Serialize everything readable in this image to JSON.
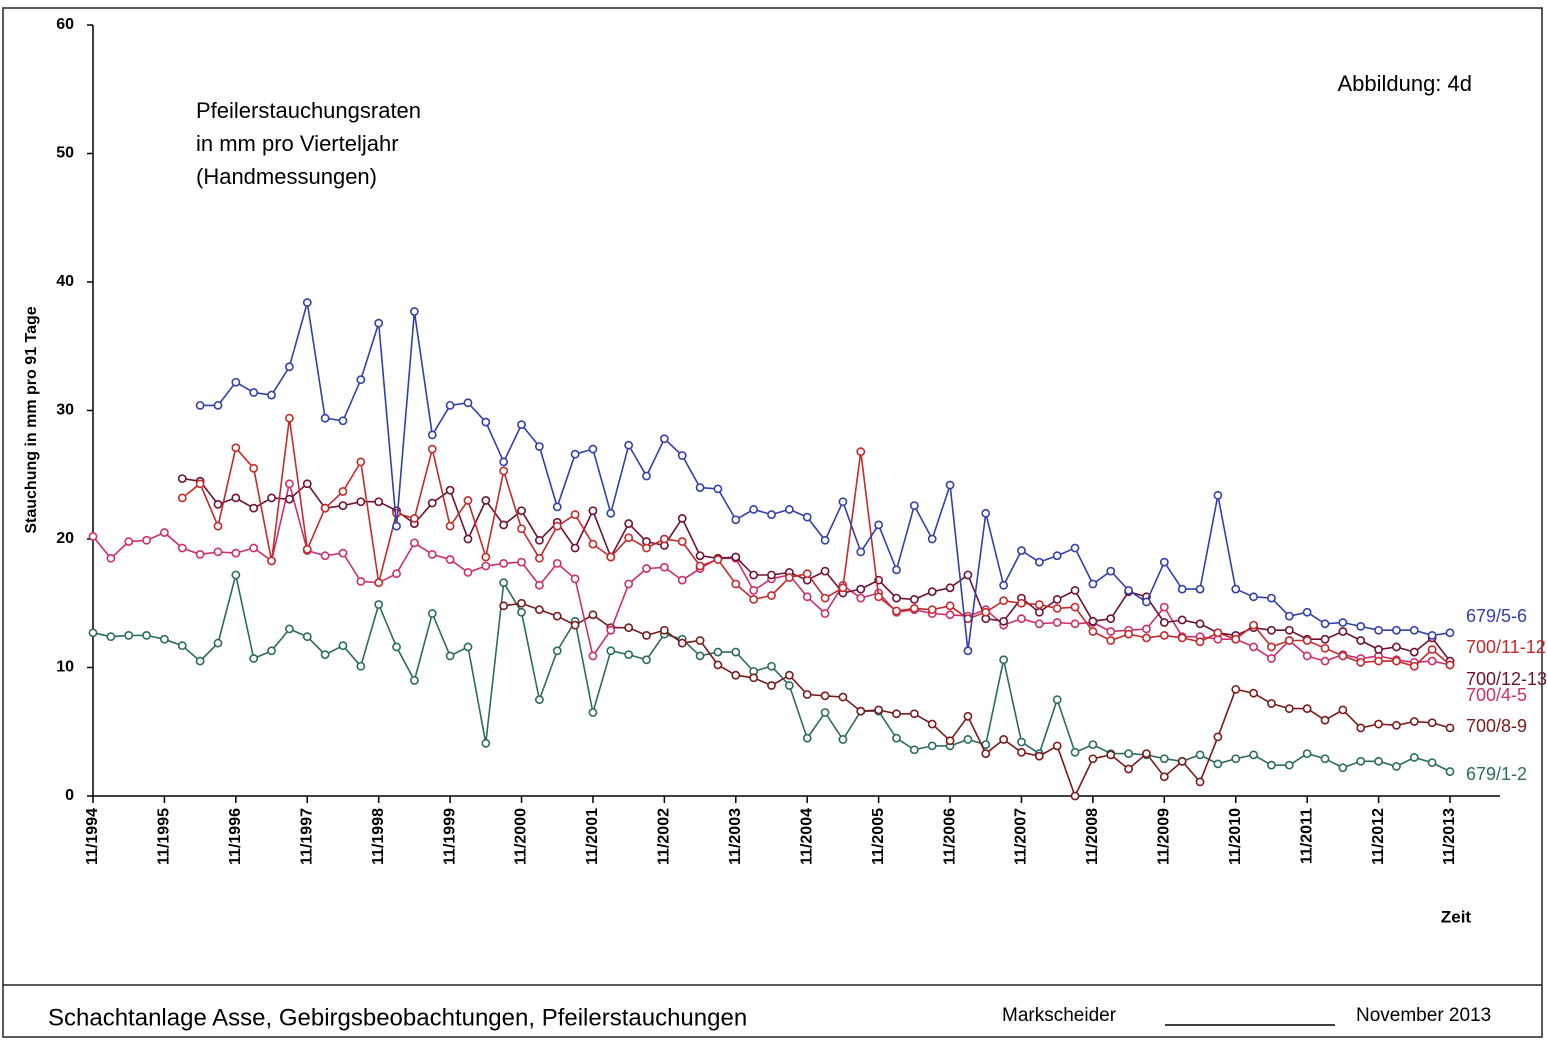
{
  "chart_data": {
    "type": "line",
    "title": [
      "Pfeilerstauchungsraten",
      "in mm pro Vierteljahr",
      "(Handmessungen)"
    ],
    "figure_label": "Abbildung:  4d",
    "y_label": "Stauchung in mm pro 91 Tage",
    "x_label": "Zeit",
    "footer": {
      "left": "Schachtanlage Asse, Gebirgsbeobachtungen, Pfeilerstauchungen",
      "signature": "Markscheider",
      "date": "November 2013"
    },
    "ylim": [
      0,
      60
    ],
    "yticks": [
      0,
      10,
      20,
      30,
      40,
      50,
      60
    ],
    "xticks": [
      "11/1994",
      "11/1995",
      "11/1996",
      "11/1997",
      "11/1998",
      "11/1999",
      "11/2000",
      "11/2001",
      "11/2002",
      "11/2003",
      "11/2004",
      "11/2005",
      "11/2006",
      "11/2007",
      "11/2008",
      "11/2009",
      "11/2010",
      "11/2011",
      "11/2012",
      "11/2013"
    ],
    "x": [
      "11/1994",
      "02/1995",
      "05/1995",
      "08/1995",
      "11/1995",
      "02/1996",
      "05/1996",
      "08/1996",
      "11/1996",
      "02/1997",
      "05/1997",
      "08/1997",
      "11/1997",
      "02/1998",
      "05/1998",
      "08/1998",
      "11/1998",
      "02/1999",
      "05/1999",
      "08/1999",
      "11/1999",
      "02/2000",
      "05/2000",
      "08/2000",
      "11/2000",
      "02/2001",
      "05/2001",
      "08/2001",
      "11/2001",
      "02/2002",
      "05/2002",
      "08/2002",
      "11/2002",
      "02/2003",
      "05/2003",
      "08/2003",
      "11/2003",
      "02/2004",
      "05/2004",
      "08/2004",
      "11/2004",
      "02/2005",
      "05/2005",
      "08/2005",
      "11/2005",
      "02/2006",
      "05/2006",
      "08/2006",
      "11/2006",
      "02/2007",
      "05/2007",
      "08/2007",
      "11/2007",
      "02/2008",
      "05/2008",
      "08/2008",
      "11/2008",
      "02/2009",
      "05/2009",
      "08/2009",
      "11/2009",
      "02/2010",
      "05/2010",
      "08/2010",
      "11/2010",
      "02/2011",
      "05/2011",
      "08/2011",
      "11/2011",
      "02/2012",
      "05/2012",
      "08/2012",
      "11/2012",
      "02/2013",
      "05/2013",
      "08/2013",
      "11/2013"
    ],
    "series": [
      {
        "name": "679/5-6",
        "color": "#3340a8",
        "values": [
          null,
          null,
          null,
          null,
          null,
          null,
          30.4,
          30.4,
          32.2,
          31.4,
          31.2,
          33.4,
          38.4,
          29.4,
          29.2,
          32.4,
          36.8,
          21,
          37.7,
          28.1,
          30.4,
          30.6,
          29.1,
          26,
          28.9,
          27.2,
          22.5,
          26.6,
          27,
          22,
          27.3,
          24.9,
          27.8,
          26.5,
          24,
          23.9,
          21.5,
          22.3,
          21.9,
          22.3,
          21.7,
          19.9,
          22.9,
          19,
          21.1,
          17.6,
          22.6,
          20,
          24.2,
          11.3,
          22,
          16.4,
          19.1,
          18.2,
          18.7,
          19.3,
          16.5,
          17.5,
          16,
          15.1,
          18.2,
          16.1,
          16.1,
          23.4,
          16.1,
          15.5,
          15.4,
          14,
          14.3,
          13.4,
          13.5,
          13.2,
          12.9,
          12.9,
          12.9,
          12.5,
          12.7
        ]
      },
      {
        "name": "700/11-12",
        "color": "#c42a2a",
        "values": [
          null,
          null,
          null,
          null,
          null,
          23.2,
          24.3,
          21,
          27.1,
          25.5,
          18.3,
          29.4,
          19.2,
          22.4,
          23.7,
          26,
          16.6,
          22,
          21.6,
          27,
          21,
          23,
          18.6,
          25.3,
          20.8,
          18.5,
          21,
          21.9,
          19.6,
          18.6,
          20.1,
          19.3,
          20,
          19.8,
          17.9,
          18.4,
          16.5,
          15.3,
          15.6,
          17,
          17.3,
          15.4,
          16.2,
          26.8,
          15.5,
          14.4,
          14.6,
          14.5,
          14.8,
          13.8,
          14.3,
          15.2,
          15,
          14.9,
          14.6,
          14.7,
          12.8,
          12.1,
          12.6,
          12.3,
          12.5,
          12.3,
          12,
          12.7,
          12.2,
          13.3,
          11.6,
          12.1,
          12.1,
          11.5,
          10.9,
          10.4,
          10.5,
          10.5,
          10.1,
          11.4,
          10.2
        ]
      },
      {
        "name": "700/12-13",
        "color": "#6e1234",
        "values": [
          null,
          null,
          null,
          null,
          null,
          24.7,
          24.5,
          22.7,
          23.2,
          22.4,
          23.2,
          23.1,
          24.3,
          22.4,
          22.6,
          22.9,
          22.9,
          22.2,
          21.2,
          22.8,
          23.8,
          20,
          23,
          21.1,
          22.2,
          19.9,
          21.3,
          19.3,
          22.2,
          18.6,
          21.2,
          19.8,
          19.5,
          21.6,
          18.7,
          18.5,
          18.6,
          17.2,
          17.2,
          17.4,
          16.8,
          17.5,
          15.8,
          16.1,
          16.8,
          15.4,
          15.3,
          15.9,
          16.2,
          17.2,
          13.8,
          13.6,
          15.4,
          14.3,
          15.3,
          16,
          13.6,
          13.8,
          15.9,
          15.5,
          13.5,
          13.7,
          13.4,
          12.7,
          12.5,
          13.1,
          12.9,
          12.9,
          12.2,
          12.2,
          12.8,
          12.1,
          11.4,
          11.6,
          11.2,
          12.3,
          10.5
        ]
      },
      {
        "name": "700/4-5",
        "color": "#cc2f6e",
        "values": [
          20.2,
          18.5,
          19.8,
          19.9,
          20.5,
          19.3,
          18.8,
          19,
          18.9,
          19.3,
          18.3,
          24.3,
          19.1,
          18.7,
          18.9,
          16.7,
          16.6,
          17.3,
          19.7,
          18.8,
          18.4,
          17.4,
          17.9,
          18.1,
          18.2,
          16.4,
          18.1,
          16.9,
          10.9,
          12.9,
          16.5,
          17.7,
          17.8,
          16.8,
          17.7,
          18.5,
          18.5,
          16,
          16.9,
          17.2,
          15.5,
          14.2,
          16.4,
          15.4,
          15.8,
          14.3,
          14.5,
          14.2,
          14.1,
          14,
          14.5,
          13.3,
          13.8,
          13.4,
          13.5,
          13.4,
          13.5,
          12.8,
          12.9,
          13,
          14.7,
          12.4,
          12.4,
          12.2,
          12.2,
          11.6,
          10.7,
          12.1,
          10.9,
          10.5,
          11,
          10.7,
          10.9,
          10.6,
          10.4,
          10.5,
          10.2
        ]
      },
      {
        "name": "700/8-9",
        "color": "#7a1a1a",
        "values": [
          null,
          null,
          null,
          null,
          null,
          null,
          null,
          null,
          null,
          null,
          null,
          null,
          null,
          null,
          null,
          null,
          null,
          null,
          null,
          null,
          null,
          null,
          null,
          14.8,
          15,
          14.5,
          14,
          13.3,
          14.1,
          13.1,
          13.1,
          12.5,
          12.9,
          11.9,
          12.1,
          10.2,
          9.4,
          9.2,
          8.6,
          9.4,
          7.9,
          7.8,
          7.7,
          6.6,
          6.7,
          6.4,
          6.4,
          5.6,
          4.3,
          6.2,
          3.3,
          4.4,
          3.4,
          3.1,
          3.9,
          0,
          2.9,
          3.2,
          2.1,
          3.3,
          1.5,
          2.7,
          1.1,
          4.6,
          8.3,
          8,
          7.2,
          6.8,
          6.8,
          5.9,
          6.7,
          5.3,
          5.6,
          5.5,
          5.8,
          5.7,
          5.3
        ]
      },
      {
        "name": "679/1-2",
        "color": "#2c6b60",
        "values": [
          12.7,
          12.4,
          12.5,
          12.5,
          12.2,
          11.7,
          10.5,
          11.9,
          17.2,
          10.7,
          11.3,
          13,
          12.4,
          11,
          11.7,
          10.1,
          14.9,
          11.6,
          9,
          14.2,
          10.9,
          11.6,
          4.1,
          16.6,
          14.3,
          7.5,
          11.3,
          13.6,
          6.5,
          11.3,
          11,
          10.6,
          12.6,
          12.2,
          10.9,
          11.2,
          11.2,
          9.7,
          10.1,
          8.6,
          4.5,
          6.5,
          4.4,
          6.6,
          6.6,
          4.5,
          3.6,
          3.9,
          3.9,
          4.4,
          4,
          10.6,
          4.2,
          3.3,
          7.5,
          3.4,
          4,
          3.3,
          3.3,
          3.2,
          2.9,
          2.7,
          3.2,
          2.5,
          2.9,
          3.2,
          2.4,
          2.4,
          3.3,
          2.9,
          2.2,
          2.7,
          2.7,
          2.3,
          3,
          2.6,
          1.9
        ]
      }
    ]
  }
}
